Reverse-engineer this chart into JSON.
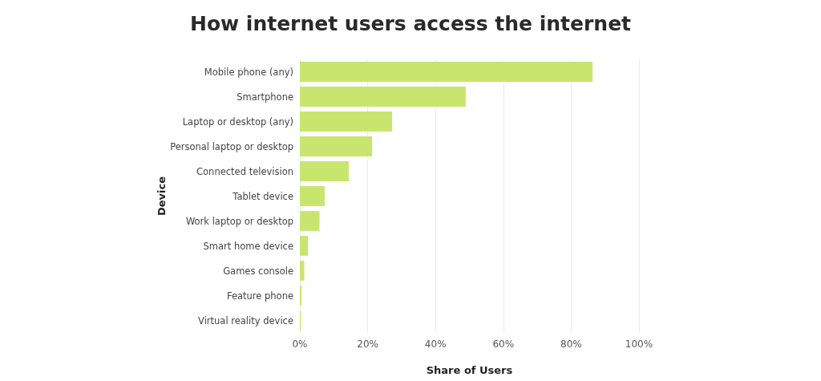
{
  "chart_data": {
    "type": "bar",
    "orientation": "horizontal",
    "title": "How internet users access the internet",
    "xlabel": "Share of Users",
    "ylabel": "Device",
    "categories": [
      "Mobile phone (any)",
      "Smartphone",
      "Laptop or desktop (any)",
      "Personal laptop or desktop",
      "Connected television",
      "Tablet device",
      "Work laptop or desktop",
      "Smart home device",
      "Games console",
      "Feature phone",
      "Virtual reality device"
    ],
    "values": [
      86.3,
      48.9,
      27.2,
      21.3,
      14.4,
      7.3,
      5.8,
      2.4,
      1.3,
      0.5,
      0.3
    ],
    "color": "#c8e66e",
    "xlim": [
      0,
      100
    ],
    "xticks": [
      {
        "value": 0,
        "label": "0%"
      },
      {
        "value": 20,
        "label": "20%"
      },
      {
        "value": 40,
        "label": "40%"
      },
      {
        "value": 60,
        "label": "60%"
      },
      {
        "value": 80,
        "label": "80%"
      },
      {
        "value": 100,
        "label": "100%"
      }
    ],
    "grid": "x"
  }
}
